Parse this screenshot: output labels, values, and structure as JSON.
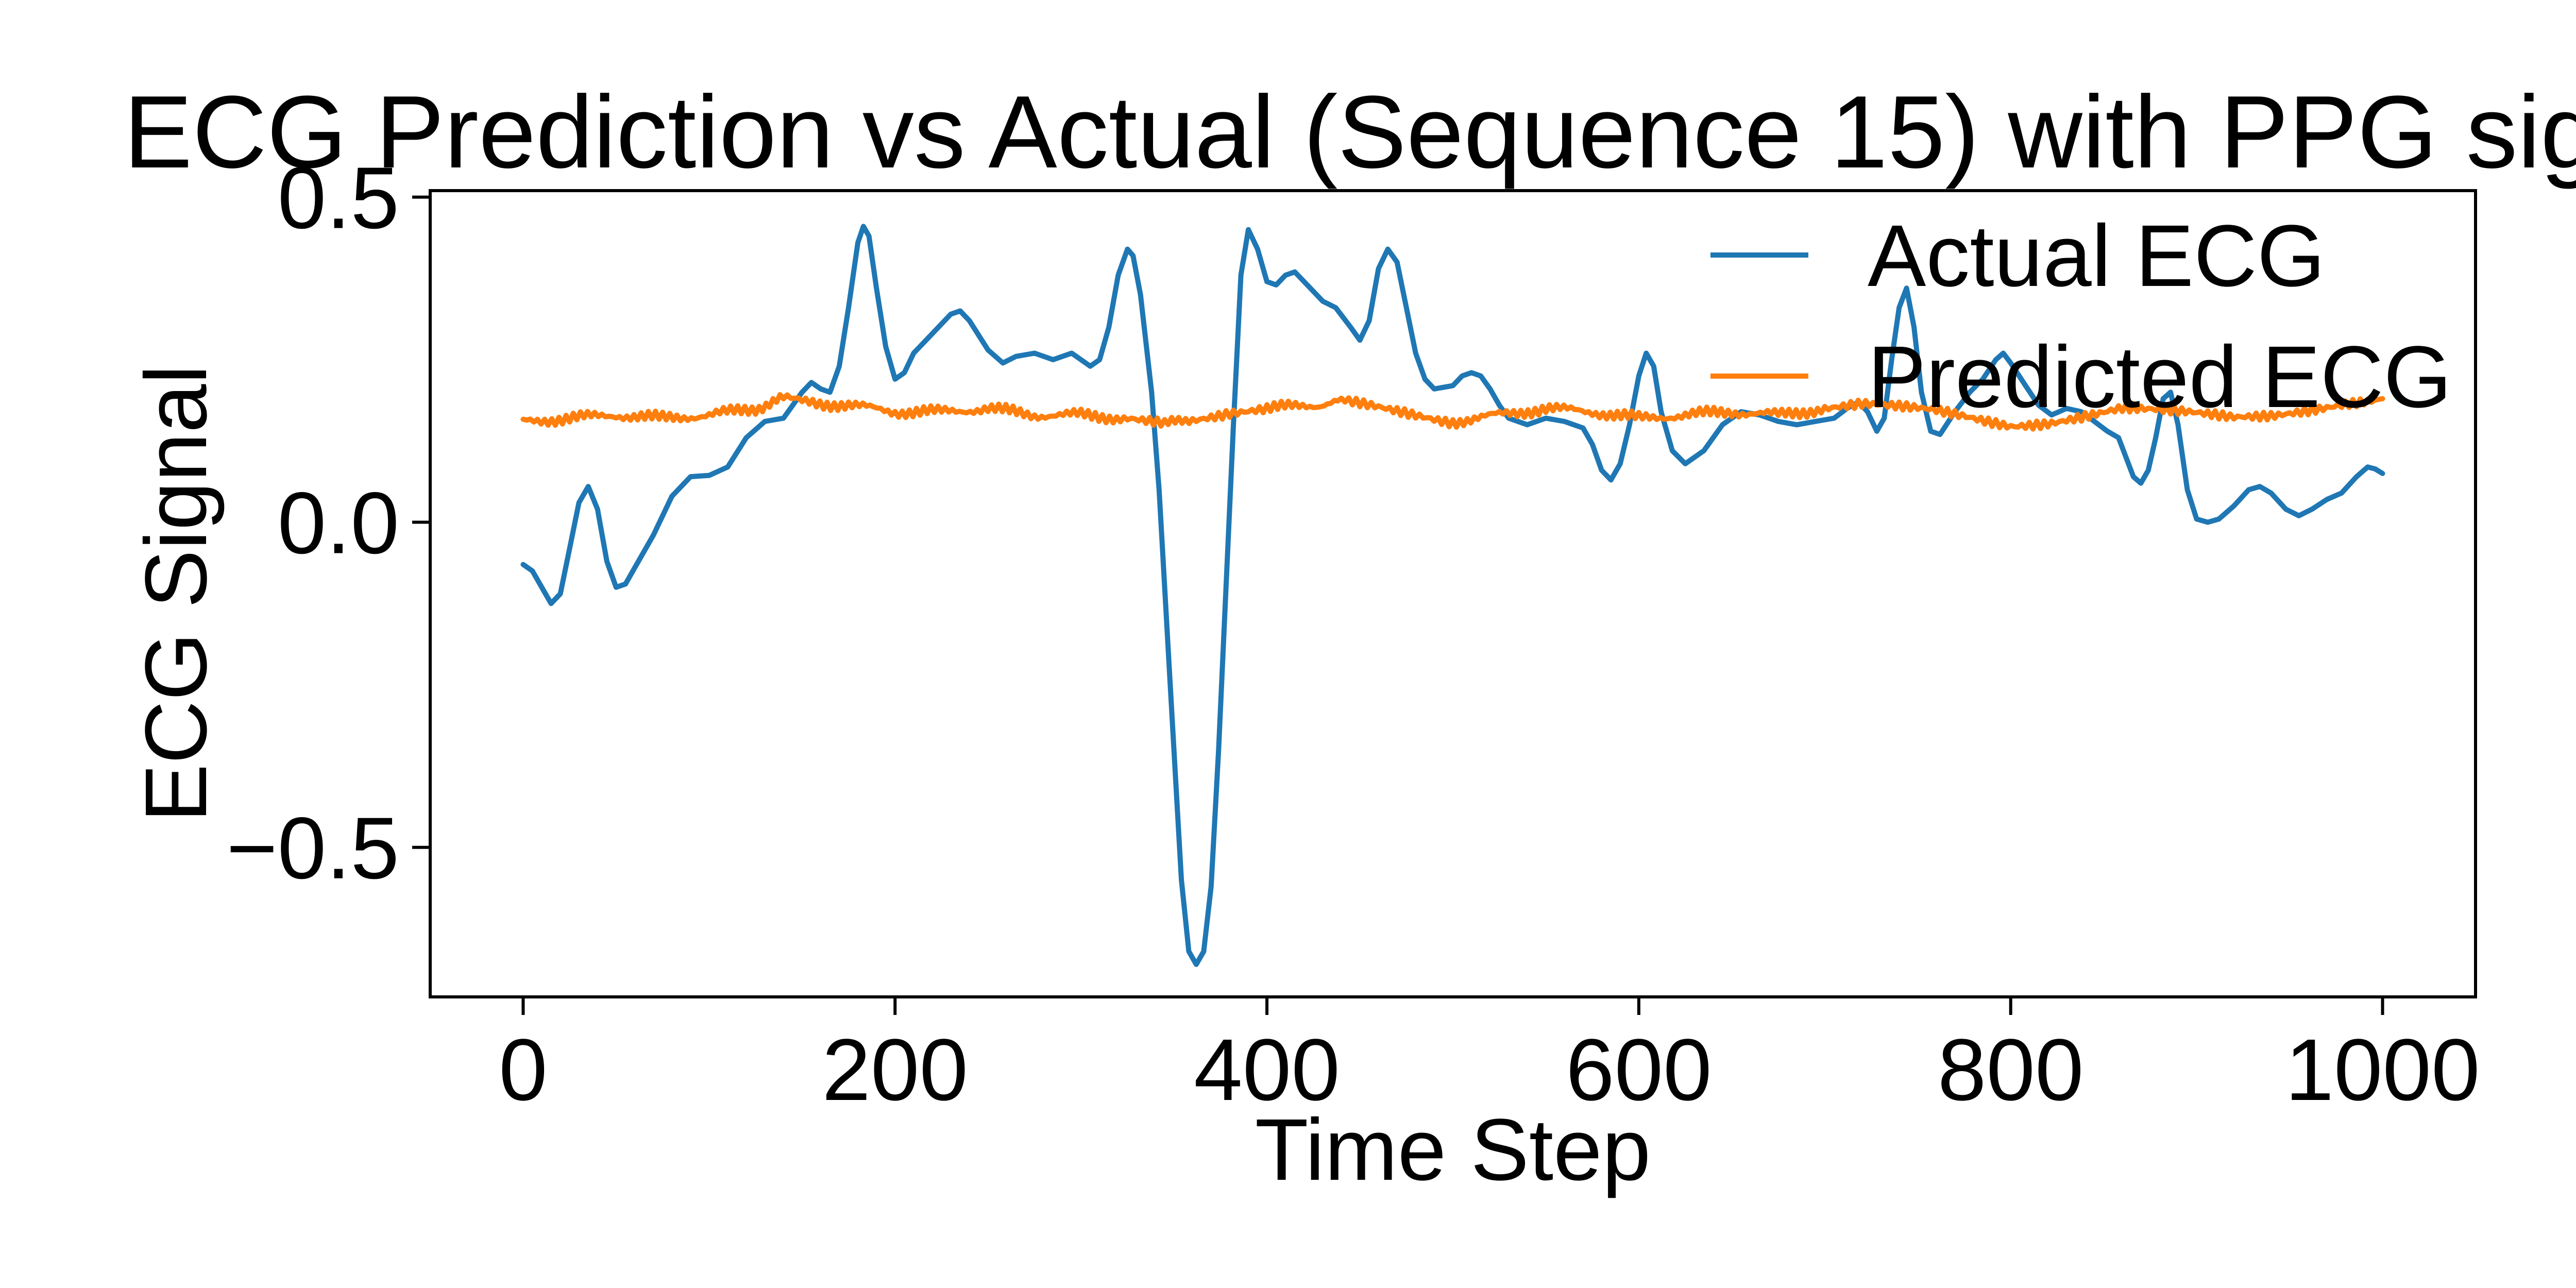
{
  "chart_data": {
    "type": "line",
    "title": "ECG Prediction vs Actual (Sequence 15) with PPG sig",
    "xlabel": "Time Step",
    "ylabel": "ECG Signal",
    "xlim": [
      -50,
      1050
    ],
    "ylim": [
      -0.73,
      0.51
    ],
    "xticks": [
      0,
      200,
      400,
      600,
      800,
      1000
    ],
    "xtick_labels": [
      "0",
      "200",
      "400",
      "600",
      "800",
      "1000"
    ],
    "yticks": [
      0.5,
      0.0,
      -0.5
    ],
    "ytick_labels": [
      "0.5",
      "0.0",
      "−0.5"
    ],
    "grid": false,
    "legend_position": "top-right",
    "series": [
      {
        "name": "Actual ECG",
        "color": "#1f77b4",
        "points": [
          [
            0,
            -0.065
          ],
          [
            5,
            -0.075
          ],
          [
            10,
            -0.1
          ],
          [
            15,
            -0.125
          ],
          [
            20,
            -0.11
          ],
          [
            25,
            -0.04
          ],
          [
            30,
            0.03
          ],
          [
            35,
            0.055
          ],
          [
            40,
            0.02
          ],
          [
            45,
            -0.06
          ],
          [
            50,
            -0.1
          ],
          [
            55,
            -0.095
          ],
          [
            60,
            -0.07
          ],
          [
            70,
            -0.02
          ],
          [
            80,
            0.04
          ],
          [
            90,
            0.07
          ],
          [
            100,
            0.072
          ],
          [
            110,
            0.085
          ],
          [
            120,
            0.13
          ],
          [
            130,
            0.155
          ],
          [
            140,
            0.16
          ],
          [
            150,
            0.2
          ],
          [
            155,
            0.215
          ],
          [
            160,
            0.205
          ],
          [
            165,
            0.2
          ],
          [
            170,
            0.24
          ],
          [
            175,
            0.33
          ],
          [
            180,
            0.43
          ],
          [
            183,
            0.455
          ],
          [
            186,
            0.44
          ],
          [
            190,
            0.36
          ],
          [
            195,
            0.27
          ],
          [
            200,
            0.22
          ],
          [
            205,
            0.23
          ],
          [
            210,
            0.26
          ],
          [
            220,
            0.29
          ],
          [
            230,
            0.32
          ],
          [
            235,
            0.325
          ],
          [
            240,
            0.31
          ],
          [
            250,
            0.265
          ],
          [
            258,
            0.245
          ],
          [
            265,
            0.255
          ],
          [
            275,
            0.26
          ],
          [
            285,
            0.25
          ],
          [
            295,
            0.26
          ],
          [
            305,
            0.24
          ],
          [
            310,
            0.25
          ],
          [
            315,
            0.3
          ],
          [
            320,
            0.38
          ],
          [
            325,
            0.42
          ],
          [
            328,
            0.41
          ],
          [
            332,
            0.35
          ],
          [
            338,
            0.2
          ],
          [
            342,
            0.05
          ],
          [
            346,
            -0.15
          ],
          [
            350,
            -0.35
          ],
          [
            354,
            -0.55
          ],
          [
            358,
            -0.66
          ],
          [
            362,
            -0.68
          ],
          [
            366,
            -0.66
          ],
          [
            370,
            -0.56
          ],
          [
            374,
            -0.35
          ],
          [
            378,
            -0.1
          ],
          [
            382,
            0.15
          ],
          [
            386,
            0.38
          ],
          [
            390,
            0.45
          ],
          [
            395,
            0.42
          ],
          [
            400,
            0.37
          ],
          [
            405,
            0.365
          ],
          [
            410,
            0.38
          ],
          [
            415,
            0.385
          ],
          [
            420,
            0.37
          ],
          [
            425,
            0.355
          ],
          [
            430,
            0.34
          ],
          [
            437,
            0.33
          ],
          [
            445,
            0.3
          ],
          [
            450,
            0.28
          ],
          [
            455,
            0.31
          ],
          [
            460,
            0.39
          ],
          [
            465,
            0.42
          ],
          [
            470,
            0.4
          ],
          [
            475,
            0.33
          ],
          [
            480,
            0.26
          ],
          [
            485,
            0.22
          ],
          [
            490,
            0.205
          ],
          [
            500,
            0.21
          ],
          [
            505,
            0.225
          ],
          [
            510,
            0.23
          ],
          [
            515,
            0.225
          ],
          [
            520,
            0.205
          ],
          [
            525,
            0.18
          ],
          [
            530,
            0.16
          ],
          [
            540,
            0.15
          ],
          [
            550,
            0.16
          ],
          [
            560,
            0.155
          ],
          [
            570,
            0.145
          ],
          [
            575,
            0.12
          ],
          [
            580,
            0.08
          ],
          [
            585,
            0.065
          ],
          [
            590,
            0.09
          ],
          [
            595,
            0.15
          ],
          [
            600,
            0.225
          ],
          [
            604,
            0.26
          ],
          [
            608,
            0.24
          ],
          [
            612,
            0.17
          ],
          [
            618,
            0.11
          ],
          [
            625,
            0.09
          ],
          [
            635,
            0.11
          ],
          [
            645,
            0.15
          ],
          [
            655,
            0.17
          ],
          [
            665,
            0.165
          ],
          [
            675,
            0.155
          ],
          [
            685,
            0.15
          ],
          [
            695,
            0.155
          ],
          [
            705,
            0.16
          ],
          [
            712,
            0.175
          ],
          [
            718,
            0.185
          ],
          [
            723,
            0.17
          ],
          [
            728,
            0.14
          ],
          [
            732,
            0.16
          ],
          [
            736,
            0.25
          ],
          [
            740,
            0.33
          ],
          [
            744,
            0.36
          ],
          [
            748,
            0.3
          ],
          [
            752,
            0.2
          ],
          [
            757,
            0.14
          ],
          [
            762,
            0.135
          ],
          [
            770,
            0.17
          ],
          [
            778,
            0.2
          ],
          [
            785,
            0.22
          ],
          [
            792,
            0.25
          ],
          [
            796,
            0.26
          ],
          [
            800,
            0.245
          ],
          [
            808,
            0.21
          ],
          [
            815,
            0.18
          ],
          [
            822,
            0.165
          ],
          [
            830,
            0.175
          ],
          [
            838,
            0.17
          ],
          [
            845,
            0.155
          ],
          [
            852,
            0.14
          ],
          [
            858,
            0.13
          ],
          [
            862,
            0.1
          ],
          [
            866,
            0.07
          ],
          [
            870,
            0.06
          ],
          [
            874,
            0.08
          ],
          [
            878,
            0.13
          ],
          [
            882,
            0.19
          ],
          [
            886,
            0.2
          ],
          [
            890,
            0.15
          ],
          [
            895,
            0.05
          ],
          [
            900,
            0.005
          ],
          [
            906,
            0.0
          ],
          [
            912,
            0.005
          ],
          [
            920,
            0.025
          ],
          [
            928,
            0.05
          ],
          [
            934,
            0.055
          ],
          [
            940,
            0.045
          ],
          [
            948,
            0.02
          ],
          [
            955,
            0.01
          ],
          [
            962,
            0.02
          ],
          [
            970,
            0.035
          ],
          [
            978,
            0.045
          ],
          [
            986,
            0.07
          ],
          [
            992,
            0.085
          ],
          [
            996,
            0.082
          ],
          [
            1000,
            0.075
          ]
        ]
      },
      {
        "name": "Predicted ECG",
        "color": "#ff7f0e",
        "points": [
          [
            0,
            0.155
          ],
          [
            25,
            0.16
          ],
          [
            50,
            0.165
          ],
          [
            75,
            0.16
          ],
          [
            100,
            0.165
          ],
          [
            125,
            0.175
          ],
          [
            140,
            0.19
          ],
          [
            150,
            0.185
          ],
          [
            175,
            0.18
          ],
          [
            200,
            0.17
          ],
          [
            225,
            0.17
          ],
          [
            250,
            0.175
          ],
          [
            275,
            0.165
          ],
          [
            300,
            0.165
          ],
          [
            325,
            0.16
          ],
          [
            345,
            0.15
          ],
          [
            360,
            0.16
          ],
          [
            380,
            0.17
          ],
          [
            400,
            0.175
          ],
          [
            425,
            0.18
          ],
          [
            440,
            0.185
          ],
          [
            460,
            0.175
          ],
          [
            480,
            0.165
          ],
          [
            500,
            0.155
          ],
          [
            525,
            0.165
          ],
          [
            550,
            0.175
          ],
          [
            575,
            0.17
          ],
          [
            600,
            0.16
          ],
          [
            625,
            0.165
          ],
          [
            650,
            0.17
          ],
          [
            675,
            0.165
          ],
          [
            700,
            0.175
          ],
          [
            720,
            0.18
          ],
          [
            740,
            0.175
          ],
          [
            760,
            0.17
          ],
          [
            780,
            0.16
          ],
          [
            800,
            0.15
          ],
          [
            820,
            0.155
          ],
          [
            840,
            0.165
          ],
          [
            860,
            0.175
          ],
          [
            880,
            0.17
          ],
          [
            900,
            0.165
          ],
          [
            920,
            0.16
          ],
          [
            940,
            0.165
          ],
          [
            960,
            0.175
          ],
          [
            980,
            0.185
          ],
          [
            1000,
            0.19
          ]
        ]
      }
    ]
  }
}
